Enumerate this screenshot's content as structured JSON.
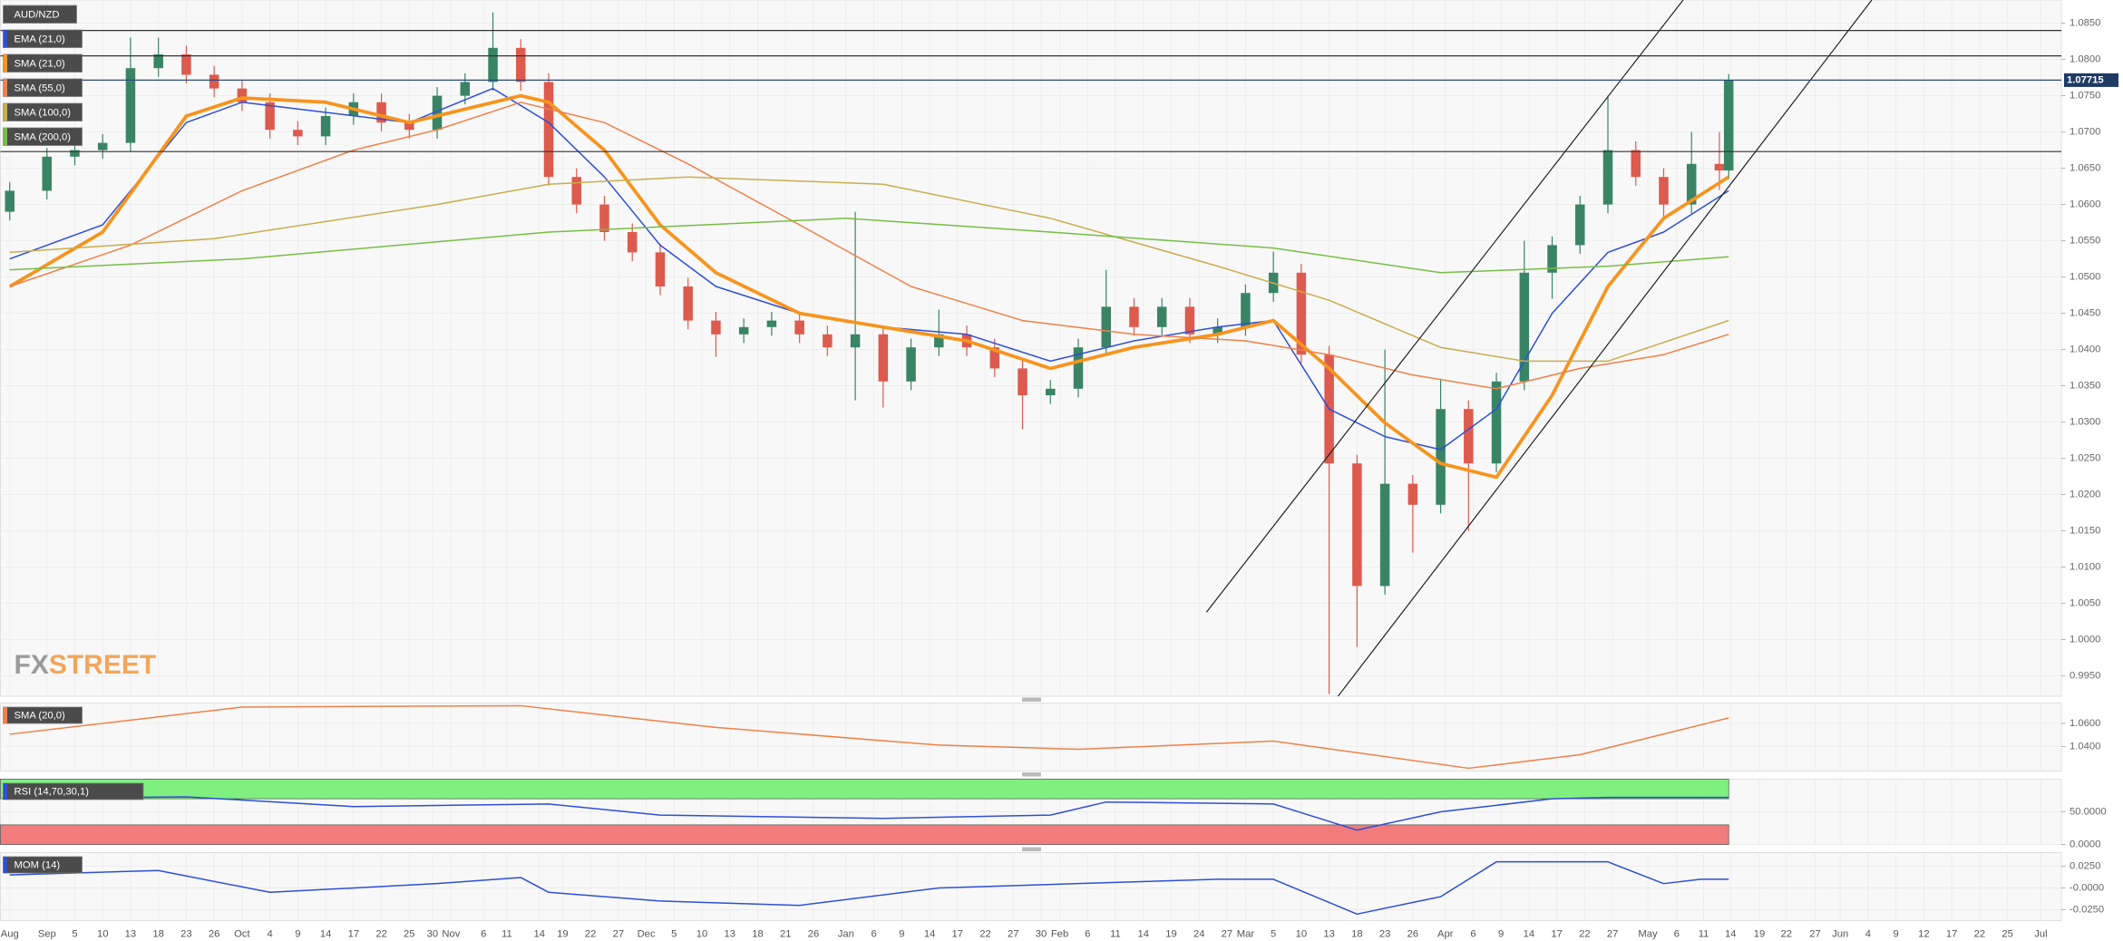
{
  "chart_data": [
    {
      "type": "candlestick",
      "title": "AUD/NZD",
      "x": [
        0,
        4,
        7,
        10,
        13,
        16,
        19,
        22,
        25,
        28,
        31,
        34,
        37,
        40,
        43,
        46,
        49,
        52,
        55,
        58,
        61,
        64,
        67,
        70,
        73,
        76,
        79,
        82,
        85,
        88,
        91,
        94,
        97,
        100,
        103,
        106,
        109,
        112,
        115,
        118,
        121,
        124,
        127,
        130,
        133,
        136,
        139,
        142,
        145,
        148,
        151,
        154,
        157,
        160,
        163,
        166,
        169,
        172,
        175,
        178,
        181,
        184,
        185
      ],
      "open": [
        1.059,
        1.0619,
        1.0666,
        1.0675,
        1.0685,
        1.0788,
        1.0807,
        1.0779,
        1.076,
        1.0741,
        1.0703,
        1.0694,
        1.0722,
        1.0741,
        1.0713,
        1.0703,
        1.075,
        1.0769,
        1.0816,
        1.0769,
        1.0638,
        1.06,
        1.0562,
        1.0534,
        1.0487,
        1.044,
        1.0421,
        1.0431,
        1.044,
        1.0421,
        1.0403,
        1.0421,
        1.0356,
        1.0403,
        1.0421,
        1.0403,
        1.0374,
        1.0337,
        1.0346,
        1.0403,
        1.0459,
        1.0431,
        1.0459,
        1.0421,
        1.0431,
        1.0478,
        1.0506,
        1.0393,
        1.0243,
        1.0074,
        1.0215,
        1.0186,
        1.0318,
        1.0243,
        1.0356,
        1.0506,
        1.0544,
        1.06,
        1.0675,
        1.0638,
        1.06,
        1.0656,
        1.0647
      ],
      "high": [
        1.0631,
        1.0678,
        1.0687,
        1.0697,
        1.083,
        1.083,
        1.0819,
        1.0791,
        1.0772,
        1.0753,
        1.0715,
        1.0734,
        1.0753,
        1.0753,
        1.0725,
        1.0762,
        1.0781,
        1.0865,
        1.0828,
        1.0781,
        1.065,
        1.0612,
        1.0574,
        1.0546,
        1.0499,
        1.0452,
        1.0443,
        1.0452,
        1.0452,
        1.0433,
        1.059,
        1.0433,
        1.0415,
        1.0455,
        1.0433,
        1.0415,
        1.0386,
        1.0358,
        1.0415,
        1.051,
        1.0471,
        1.0471,
        1.0471,
        1.0443,
        1.049,
        1.0535,
        1.0518,
        1.0405,
        1.0255,
        1.04,
        1.0227,
        1.036,
        1.033,
        1.0368,
        1.055,
        1.0556,
        1.0612,
        1.075,
        1.0687,
        1.065,
        1.07,
        1.07,
        1.078
      ],
      "low": [
        1.0578,
        1.0607,
        1.0654,
        1.0663,
        1.0673,
        1.0776,
        1.0767,
        1.0748,
        1.0729,
        1.0691,
        1.0682,
        1.0682,
        1.071,
        1.0701,
        1.0691,
        1.0691,
        1.0738,
        1.0757,
        1.0757,
        1.0626,
        1.0588,
        1.055,
        1.0522,
        1.0475,
        1.0428,
        1.039,
        1.0409,
        1.0419,
        1.0409,
        1.0391,
        1.033,
        1.032,
        1.0344,
        1.0391,
        1.0391,
        1.0362,
        1.029,
        1.0325,
        1.0334,
        1.0391,
        1.0419,
        1.0419,
        1.0409,
        1.0409,
        1.0419,
        1.0466,
        1.0381,
        0.9925,
        0.999,
        1.0062,
        1.012,
        1.0174,
        1.015,
        1.0231,
        1.0344,
        1.047,
        1.0532,
        1.0588,
        1.0626,
        1.058,
        1.0588,
        1.062,
        1.0635
      ],
      "close": [
        1.0619,
        1.0666,
        1.0675,
        1.0685,
        1.0788,
        1.0807,
        1.0779,
        1.076,
        1.0741,
        1.0703,
        1.0694,
        1.0722,
        1.0741,
        1.0713,
        1.0703,
        1.075,
        1.0769,
        1.0816,
        1.0769,
        1.0638,
        1.06,
        1.0562,
        1.0534,
        1.0487,
        1.044,
        1.0421,
        1.0431,
        1.044,
        1.0421,
        1.0403,
        1.0421,
        1.0356,
        1.0403,
        1.0421,
        1.0403,
        1.0374,
        1.0337,
        1.0346,
        1.0403,
        1.0459,
        1.0431,
        1.0459,
        1.0421,
        1.0431,
        1.0478,
        1.0506,
        1.0393,
        1.0243,
        1.0074,
        1.0215,
        1.0186,
        1.0318,
        1.0243,
        1.0356,
        1.0506,
        1.0544,
        1.06,
        1.0675,
        1.0638,
        1.06,
        1.0656,
        1.0647,
        1.0772
      ],
      "up_color": "#3a8466",
      "down_color": "#dd5a4e",
      "series": [
        {
          "name": "EMA (21,0)",
          "color": "#2e4fd6",
          "width": 1,
          "x": [
            0,
            10,
            19,
            25,
            43,
            52,
            58,
            64,
            70,
            76,
            85,
            94,
            103,
            112,
            121,
            130,
            136,
            142,
            148,
            154,
            160,
            166,
            172,
            178,
            185
          ],
          "values": [
            1.0525,
            1.0572,
            1.0713,
            1.0741,
            1.0713,
            1.076,
            1.0713,
            1.0638,
            1.0544,
            1.0487,
            1.045,
            1.0431,
            1.0421,
            1.0384,
            1.0412,
            1.0431,
            1.044,
            1.0318,
            1.028,
            1.0262,
            1.0318,
            1.045,
            1.0534,
            1.0562,
            1.0619
          ]
        },
        {
          "name": "SMA (21,0)",
          "color": "#f7941d",
          "width": 2.5,
          "x": [
            0,
            10,
            19,
            25,
            34,
            43,
            55,
            58,
            64,
            70,
            76,
            85,
            94,
            103,
            112,
            121,
            130,
            136,
            142,
            148,
            154,
            160,
            166,
            172,
            178,
            185
          ],
          "values": [
            1.0487,
            1.0562,
            1.0722,
            1.0747,
            1.0741,
            1.0713,
            1.075,
            1.0741,
            1.0675,
            1.0572,
            1.0506,
            1.045,
            1.0431,
            1.0412,
            1.0374,
            1.0403,
            1.0421,
            1.044,
            1.0374,
            1.0299,
            1.0243,
            1.0224,
            1.0337,
            1.0487,
            1.0581,
            1.0638
          ]
        },
        {
          "name": "SMA (55,0)",
          "color": "#ef8048",
          "width": 1,
          "x": [
            0,
            13,
            25,
            37,
            46,
            55,
            64,
            73,
            85,
            97,
            109,
            121,
            133,
            142,
            151,
            160,
            169,
            178,
            185
          ],
          "values": [
            1.0487,
            1.0544,
            1.0619,
            1.0675,
            1.0703,
            1.0741,
            1.0713,
            1.0656,
            1.0572,
            1.0487,
            1.044,
            1.0421,
            1.0412,
            1.0393,
            1.0365,
            1.0346,
            1.0374,
            1.0393,
            1.0421
          ]
        },
        {
          "name": "SMA (100,0)",
          "color": "#c8ad4e",
          "width": 1,
          "x": [
            0,
            22,
            46,
            58,
            73,
            94,
            112,
            130,
            142,
            154,
            163,
            172,
            185
          ],
          "values": [
            1.0534,
            1.0553,
            1.06,
            1.0628,
            1.0638,
            1.0628,
            1.0581,
            1.0515,
            1.0468,
            1.0403,
            1.0384,
            1.0384,
            1.044
          ]
        },
        {
          "name": "SMA (200,0)",
          "color": "#78bd45",
          "width": 1,
          "x": [
            0,
            25,
            58,
            90,
            112,
            136,
            154,
            172,
            185
          ],
          "values": [
            1.051,
            1.0525,
            1.0562,
            1.0581,
            1.0562,
            1.054,
            1.0506,
            1.0515,
            1.0528
          ]
        }
      ],
      "hlines": [
        1.084,
        1.0805,
        1.0673
      ],
      "last_price": {
        "value": 1.07715,
        "label": "1.07715"
      },
      "trendlines": [
        {
          "x": [
            128.8,
            180.1
          ],
          "y": [
            1.0038,
            1.0882
          ]
        },
        {
          "x": [
            142.9,
            200.4
          ],
          "y": [
            0.9921,
            1.0882
          ]
        }
      ],
      "xlim": [
        -1,
        220.8
      ],
      "ylim": [
        0.9922,
        1.0882
      ],
      "yticks": [
        {
          "value": 0.995,
          "label": "0.9950"
        },
        {
          "value": 1.0,
          "label": "1.0000"
        },
        {
          "value": 1.005,
          "label": "1.0050"
        },
        {
          "value": 1.01,
          "label": "1.0100"
        },
        {
          "value": 1.015,
          "label": "1.0150"
        },
        {
          "value": 1.02,
          "label": "1.0200"
        },
        {
          "value": 1.025,
          "label": "1.0250"
        },
        {
          "value": 1.03,
          "label": "1.0300"
        },
        {
          "value": 1.035,
          "label": "1.0350"
        },
        {
          "value": 1.04,
          "label": "1.0400"
        },
        {
          "value": 1.045,
          "label": "1.0450"
        },
        {
          "value": 1.05,
          "label": "1.0500"
        },
        {
          "value": 1.055,
          "label": "1.0550"
        },
        {
          "value": 1.06,
          "label": "1.0600"
        },
        {
          "value": 1.065,
          "label": "1.0650"
        },
        {
          "value": 1.07,
          "label": "1.0700"
        },
        {
          "value": 1.075,
          "label": "1.0750"
        },
        {
          "value": 1.08,
          "label": "1.0800"
        },
        {
          "value": 1.085,
          "label": "1.0850"
        }
      ],
      "xticks": [
        {
          "value": 0,
          "label": "Aug"
        },
        {
          "value": 4,
          "label": "Sep"
        },
        {
          "value": 7,
          "label": "5"
        },
        {
          "value": 10,
          "label": "10"
        },
        {
          "value": 13,
          "label": "13"
        },
        {
          "value": 16,
          "label": "18"
        },
        {
          "value": 19,
          "label": "23"
        },
        {
          "value": 22,
          "label": "26"
        },
        {
          "value": 25,
          "label": "Oct"
        },
        {
          "value": 28,
          "label": "4"
        },
        {
          "value": 31,
          "label": "9"
        },
        {
          "value": 34,
          "label": "14"
        },
        {
          "value": 37,
          "label": "17"
        },
        {
          "value": 40,
          "label": "22"
        },
        {
          "value": 43,
          "label": "25"
        },
        {
          "value": 45.5,
          "label": "30"
        },
        {
          "value": 47.5,
          "label": "Nov"
        },
        {
          "value": 51,
          "label": "6"
        },
        {
          "value": 53.5,
          "label": "11"
        },
        {
          "value": 57,
          "label": "14"
        },
        {
          "value": 59.5,
          "label": "19"
        },
        {
          "value": 62.5,
          "label": "22"
        },
        {
          "value": 65.5,
          "label": "27"
        },
        {
          "value": 68.5,
          "label": "Dec"
        },
        {
          "value": 71.5,
          "label": "5"
        },
        {
          "value": 74.5,
          "label": "10"
        },
        {
          "value": 77.5,
          "label": "13"
        },
        {
          "value": 80.5,
          "label": "18"
        },
        {
          "value": 83.5,
          "label": "21"
        },
        {
          "value": 86.5,
          "label": "26"
        },
        {
          "value": 90,
          "label": "Jan"
        },
        {
          "value": 93,
          "label": "6"
        },
        {
          "value": 96,
          "label": "9"
        },
        {
          "value": 99,
          "label": "14"
        },
        {
          "value": 102,
          "label": "17"
        },
        {
          "value": 105,
          "label": "22"
        },
        {
          "value": 108,
          "label": "27"
        },
        {
          "value": 111,
          "label": "30"
        },
        {
          "value": 113,
          "label": "Feb"
        },
        {
          "value": 116,
          "label": "6"
        },
        {
          "value": 119,
          "label": "11"
        },
        {
          "value": 122,
          "label": "14"
        },
        {
          "value": 125,
          "label": "19"
        },
        {
          "value": 128,
          "label": "24"
        },
        {
          "value": 131,
          "label": "27"
        },
        {
          "value": 133,
          "label": "Mar"
        },
        {
          "value": 136,
          "label": "5"
        },
        {
          "value": 139,
          "label": "10"
        },
        {
          "value": 142,
          "label": "13"
        },
        {
          "value": 145,
          "label": "18"
        },
        {
          "value": 148,
          "label": "23"
        },
        {
          "value": 151,
          "label": "26"
        },
        {
          "value": 154.5,
          "label": "Apr"
        },
        {
          "value": 157.5,
          "label": "6"
        },
        {
          "value": 160.5,
          "label": "9"
        },
        {
          "value": 163.5,
          "label": "14"
        },
        {
          "value": 166.5,
          "label": "17"
        },
        {
          "value": 169.5,
          "label": "22"
        },
        {
          "value": 172.5,
          "label": "27"
        },
        {
          "value": 176.3,
          "label": "May"
        },
        {
          "value": 179.4,
          "label": "6"
        },
        {
          "value": 182.3,
          "label": "11"
        },
        {
          "value": 185.2,
          "label": "14"
        },
        {
          "value": 188.3,
          "label": "19"
        },
        {
          "value": 191.2,
          "label": "22"
        },
        {
          "value": 194.3,
          "label": "27"
        },
        {
          "value": 197,
          "label": "Jun"
        },
        {
          "value": 200,
          "label": "4"
        },
        {
          "value": 203,
          "label": "9"
        },
        {
          "value": 206,
          "label": "12"
        },
        {
          "value": 209,
          "label": "17"
        },
        {
          "value": 212,
          "label": "22"
        },
        {
          "value": 215,
          "label": "25"
        },
        {
          "value": 218.6,
          "label": "Jul"
        }
      ],
      "grid": true
    },
    {
      "type": "line",
      "series": [
        {
          "name": "SMA (20,0)",
          "color": "#ef8048",
          "width": 1,
          "x": [
            0,
            25,
            55,
            76,
            100,
            115,
            136,
            157,
            169,
            185
          ],
          "values": [
            1.0506,
            1.0741,
            1.0753,
            1.0565,
            1.0412,
            1.0376,
            1.0447,
            1.0212,
            1.0329,
            1.0647
          ]
        }
      ],
      "ylim": [
        1.0188,
        1.0776
      ],
      "yticks": [
        {
          "value": 1.06,
          "label": "1.0600"
        },
        {
          "value": 1.04,
          "label": "1.0400"
        }
      ],
      "grid": true
    },
    {
      "type": "line",
      "series": [
        {
          "name": "RSI (14,70,30,1)",
          "color": "#2e4fd6",
          "width": 1,
          "x": [
            0,
            19,
            37,
            58,
            70,
            94,
            112,
            118,
            136,
            145,
            154,
            166,
            172,
            185
          ],
          "values": [
            70,
            73,
            58,
            62,
            45,
            40,
            45,
            65,
            62,
            22,
            50,
            70,
            72,
            72
          ]
        }
      ],
      "bands": [
        {
          "from": 70,
          "to": 100,
          "color": "#7ff07f"
        },
        {
          "from": 0,
          "to": 30,
          "color": "#f27b7b"
        }
      ],
      "ylim": [
        0,
        100
      ],
      "yticks": [
        {
          "value": 50,
          "label": "50.0000"
        },
        {
          "value": 0,
          "label": "0.0000"
        }
      ],
      "grid": true
    },
    {
      "type": "line",
      "series": [
        {
          "name": "MOM (14)",
          "color": "#2e4fd6",
          "width": 1,
          "x": [
            0,
            16,
            28,
            46,
            55,
            58,
            70,
            85,
            100,
            115,
            130,
            136,
            145,
            154,
            160,
            166,
            172,
            178,
            182,
            185
          ],
          "values": [
            0.015,
            0.02,
            -0.005,
            0.005,
            0.012,
            -0.005,
            -0.015,
            -0.02,
            0,
            0.005,
            0.01,
            0.01,
            -0.03,
            -0.01,
            0.03,
            0.03,
            0.03,
            0.005,
            0.01,
            0.01
          ]
        }
      ],
      "ylim": [
        -0.0375,
        0.0406
      ],
      "yticks": [
        {
          "value": 0.025,
          "label": "0.0250"
        },
        {
          "value": 0,
          "label": "-0.0000"
        },
        {
          "value": -0.025,
          "label": "-0.0250"
        }
      ],
      "grid": true
    }
  ],
  "watermark": {
    "left": "FX",
    "right": "STREET"
  }
}
